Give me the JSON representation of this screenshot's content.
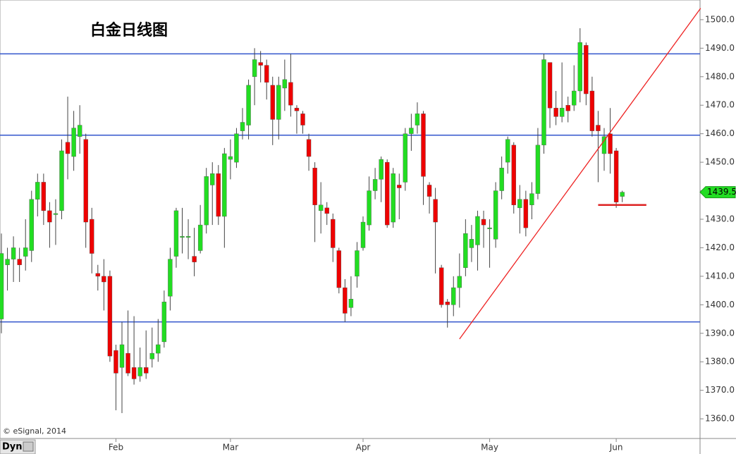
{
  "chart_data": {
    "type": "candlestick",
    "title": "白金日线图",
    "credit": "© eSignal, 2014",
    "mode": "Dyn",
    "categories": [
      null,
      null,
      null,
      null,
      null,
      null,
      null,
      null,
      null,
      null,
      null,
      null,
      null,
      null,
      null,
      null,
      null,
      null,
      null,
      "Feb",
      null,
      null,
      null,
      null,
      null,
      null,
      null,
      null,
      null,
      null,
      null,
      null,
      null,
      null,
      null,
      null,
      null,
      null,
      "Mar",
      null,
      null,
      null,
      null,
      null,
      null,
      null,
      null,
      null,
      null,
      null,
      null,
      null,
      null,
      null,
      null,
      null,
      null,
      null,
      null,
      null,
      "Apr",
      null,
      null,
      null,
      null,
      null,
      null,
      null,
      null,
      null,
      null,
      null,
      null,
      null,
      null,
      null,
      null,
      null,
      null,
      null,
      null,
      "May",
      null,
      null,
      null,
      null,
      null,
      null,
      null,
      null,
      null,
      null,
      null,
      null,
      null,
      null,
      null,
      null,
      null,
      null,
      null,
      null,
      "Jun",
      null
    ],
    "open": [
      1395,
      1414,
      1416,
      1416,
      1417,
      1419,
      1437,
      1443,
      1433,
      1432,
      1433,
      1457,
      1452,
      1459,
      1458,
      1430,
      1411,
      1410,
      1410,
      1384,
      1378,
      1383,
      1378,
      1375,
      1378,
      1381,
      1383,
      1387,
      1403,
      1417,
      1424,
      1424,
      1417,
      1419,
      1428,
      1442,
      1446,
      1431,
      1451,
      1450,
      1461,
      1463,
      1480,
      1485,
      1484,
      1477,
      1465,
      1476,
      1478,
      1469,
      1467,
      1458,
      1448,
      1433,
      1434,
      1430,
      1419,
      1406,
      1399,
      1410,
      1420,
      1428,
      1440,
      1444,
      1450,
      1429,
      1442,
      1443,
      1460,
      1463,
      1467,
      1442,
      1437,
      1413,
      1401,
      1400,
      1406,
      1413,
      1420,
      1421,
      1430,
      1427,
      1423,
      1440,
      1450,
      1456,
      1434,
      1437,
      1435,
      1439,
      1456,
      1485,
      1469,
      1466,
      1470,
      1470,
      1475,
      1491,
      1475,
      1463,
      1453,
      1460,
      1454,
      1438
    ],
    "high": [
      1425,
      1420,
      1424,
      1420,
      1430,
      1440,
      1446,
      1446,
      1436,
      1437,
      1458,
      1473,
      1468,
      1470,
      1460,
      1434,
      1414,
      1416,
      1412,
      1386,
      1394,
      1398,
      1396,
      1385,
      1391,
      1392,
      1395,
      1405,
      1420,
      1434,
      1434,
      1430,
      1427,
      1435,
      1448,
      1450,
      1449,
      1455,
      1458,
      1462,
      1469,
      1479,
      1490,
      1489,
      1486,
      1480,
      1480,
      1486,
      1488,
      1470,
      1468,
      1460,
      1450,
      1443,
      1436,
      1432,
      1420,
      1409,
      1410,
      1422,
      1431,
      1445,
      1448,
      1452,
      1451,
      1448,
      1446,
      1462,
      1467,
      1471,
      1468,
      1443,
      1441,
      1414,
      1402,
      1410,
      1418,
      1430,
      1428,
      1433,
      1433,
      1430,
      1443,
      1452,
      1459,
      1457,
      1442,
      1440,
      1443,
      1462,
      1488,
      1485,
      1475,
      1485,
      1473,
      1484,
      1497,
      1492,
      1480,
      1468,
      1462,
      1469,
      1455,
      1440
    ],
    "low": [
      1390,
      1405,
      1408,
      1408,
      1412,
      1415,
      1431,
      1428,
      1420,
      1421,
      1430,
      1444,
      1447,
      1453,
      1420,
      1411,
      1405,
      1398,
      1380,
      1363,
      1362,
      1375,
      1372,
      1373,
      1374,
      1378,
      1380,
      1385,
      1398,
      1413,
      1418,
      1416,
      1410,
      1418,
      1425,
      1428,
      1428,
      1420,
      1444,
      1448,
      1458,
      1458,
      1470,
      1478,
      1472,
      1456,
      1458,
      1468,
      1466,
      1460,
      1460,
      1447,
      1422,
      1425,
      1428,
      1415,
      1404,
      1394,
      1396,
      1406,
      1419,
      1426,
      1437,
      1436,
      1427,
      1427,
      1430,
      1440,
      1454,
      1460,
      1435,
      1432,
      1411,
      1399,
      1392,
      1396,
      1399,
      1410,
      1415,
      1412,
      1420,
      1413,
      1420,
      1437,
      1446,
      1432,
      1425,
      1424,
      1430,
      1437,
      1453,
      1462,
      1463,
      1464,
      1464,
      1468,
      1471,
      1470,
      1459,
      1443,
      1447,
      1446,
      1434,
      1436
    ],
    "close": [
      1418,
      1416,
      1420,
      1414,
      1420,
      1437,
      1443,
      1433,
      1429,
      1432,
      1454,
      1453,
      1462,
      1463,
      1429,
      1418,
      1410,
      1408,
      1382,
      1376,
      1386,
      1376,
      1374,
      1378,
      1376,
      1383,
      1386,
      1401,
      1416,
      1433,
      1424,
      1424,
      1415,
      1428,
      1445,
      1446,
      1431,
      1453,
      1452,
      1460,
      1464,
      1477,
      1486,
      1484,
      1478,
      1465,
      1477,
      1479,
      1470,
      1468,
      1463,
      1452,
      1435,
      1435,
      1432,
      1420,
      1406,
      1397,
      1402,
      1419,
      1429,
      1440,
      1444,
      1451,
      1428,
      1446,
      1441,
      1460,
      1462,
      1467,
      1445,
      1438,
      1429,
      1400,
      1400,
      1406,
      1410,
      1425,
      1423,
      1431,
      1428,
      1427,
      1440,
      1448,
      1458,
      1435,
      1437,
      1427,
      1439,
      1456,
      1486,
      1469,
      1466,
      1469,
      1468,
      1475,
      1492,
      1474,
      1461,
      1461,
      1459,
      1453,
      1436,
      1439.5
    ],
    "up_color": "#22dd22",
    "down_color": "#ee0000",
    "hlines": [
      1488,
      1459.5,
      1394
    ],
    "hline_color": "#3355cc",
    "trendline": {
      "x": [
        76,
        116
      ],
      "y": [
        1388,
        1504
      ],
      "color": "#ee2222"
    },
    "support": {
      "x": [
        99,
        107
      ],
      "y": [
        1435,
        1435
      ],
      "color": "#dd2222"
    },
    "last_price": 1439.5,
    "ylim": [
      1353.1,
      1506.9
    ],
    "yticks": [
      {
        "value": 1360,
        "label": "1360.0"
      },
      {
        "value": 1370,
        "label": "1370.0"
      },
      {
        "value": 1380,
        "label": "1380.0"
      },
      {
        "value": 1390,
        "label": "1390.0"
      },
      {
        "value": 1400,
        "label": "1400.0"
      },
      {
        "value": 1410,
        "label": "1410.0"
      },
      {
        "value": 1420,
        "label": "1420.0"
      },
      {
        "value": 1430,
        "label": "1430.0"
      },
      {
        "value": 1440,
        "label": "1440.0"
      },
      {
        "value": 1450,
        "label": "1450.0"
      },
      {
        "value": 1460,
        "label": "1460.0"
      },
      {
        "value": 1470,
        "label": "1470.0"
      },
      {
        "value": 1480,
        "label": "1480.0"
      },
      {
        "value": 1490,
        "label": "1490.0"
      },
      {
        "value": 1500,
        "label": "1500.0"
      }
    ]
  }
}
